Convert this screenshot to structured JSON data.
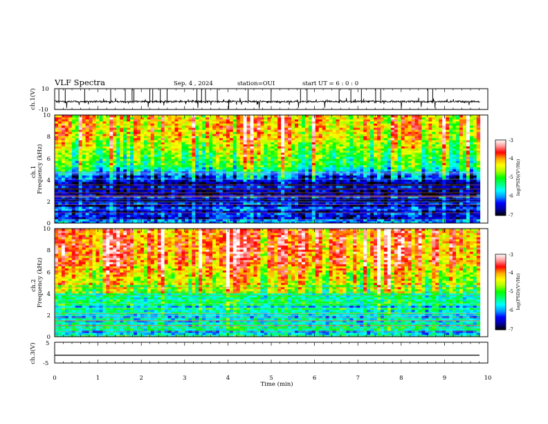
{
  "header": {
    "title": "VLF Spectra",
    "date": "Sep. 4 , 2024",
    "station": "station=OUI",
    "start_time": "start UT =  6 : 0 : 0"
  },
  "chart_data": [
    {
      "type": "line",
      "panel": "ch1-waveform",
      "ylabel": "ch.1(V)",
      "ylim": [
        -10,
        10
      ],
      "y_tick_labels": [
        "10",
        "-10"
      ],
      "x_range_min": [
        0,
        9.82
      ],
      "baseline_v": -2.4,
      "grid": false
    },
    {
      "type": "heatmap",
      "panel": "ch1-spectrogram",
      "ylabel_channel": "ch.1",
      "ylabel": "Frequency (kHz)",
      "ylim": [
        0,
        10
      ],
      "y_tick_labels": [
        "0",
        "2",
        "4",
        "6",
        "8",
        "10"
      ],
      "colorbar": {
        "label": "log(PSD)(V²/Hz)",
        "range": [
          -7,
          -3
        ],
        "tick_labels": [
          "-3",
          "-4",
          "-5",
          "-6",
          "-7"
        ],
        "colors": [
          "#000080",
          "#0000ff",
          "#00ffff",
          "#00ff00",
          "#ffff00",
          "#ff0000",
          "#ffffff"
        ]
      },
      "mean_log_psd_by_frequency_khz": [
        [
          0.2,
          -6.2
        ],
        [
          1,
          -6.4
        ],
        [
          2,
          -6.6
        ],
        [
          3,
          -6.5
        ],
        [
          3.8,
          -6.6
        ],
        [
          4.5,
          -6.2
        ],
        [
          5.2,
          -5.3
        ],
        [
          6.5,
          -4.9
        ],
        [
          8,
          -4.3
        ],
        [
          10,
          -4.2
        ]
      ]
    },
    {
      "type": "heatmap",
      "panel": "ch2-spectrogram",
      "ylabel_channel": "ch.2",
      "ylabel": "Frequency (kHz)",
      "ylim": [
        0,
        10
      ],
      "y_tick_labels": [
        "0",
        "2",
        "4",
        "6",
        "8",
        "10"
      ],
      "colorbar": {
        "label": "log(PSD)(V²/Hz)",
        "range": [
          -7,
          -3
        ],
        "tick_labels": [
          "-3",
          "-4",
          "-5",
          "-6",
          "-7"
        ],
        "colors": [
          "#000080",
          "#0000ff",
          "#00ffff",
          "#00ff00",
          "#ffff00",
          "#ff0000",
          "#ffffff"
        ]
      },
      "mean_log_psd_by_frequency_khz": [
        [
          0.2,
          -5.6
        ],
        [
          1.5,
          -5.8
        ],
        [
          2.5,
          -5.6
        ],
        [
          3.5,
          -5.4
        ],
        [
          4.5,
          -5.0
        ],
        [
          5.5,
          -4.4
        ],
        [
          7,
          -4.0
        ],
        [
          8.5,
          -3.9
        ],
        [
          10,
          -4.0
        ]
      ]
    },
    {
      "type": "line",
      "panel": "ch3-waveform",
      "ylabel": "ch.3(V)",
      "ylim": [
        -5,
        5
      ],
      "y_tick_labels": [
        "5",
        "-5"
      ],
      "constant_value_v": -1.2
    }
  ],
  "x_axis": {
    "label": "Time (min)",
    "range": [
      0,
      10
    ],
    "tick_labels": [
      "0",
      "1",
      "2",
      "3",
      "4",
      "5",
      "6",
      "7",
      "8",
      "9",
      "10"
    ]
  }
}
